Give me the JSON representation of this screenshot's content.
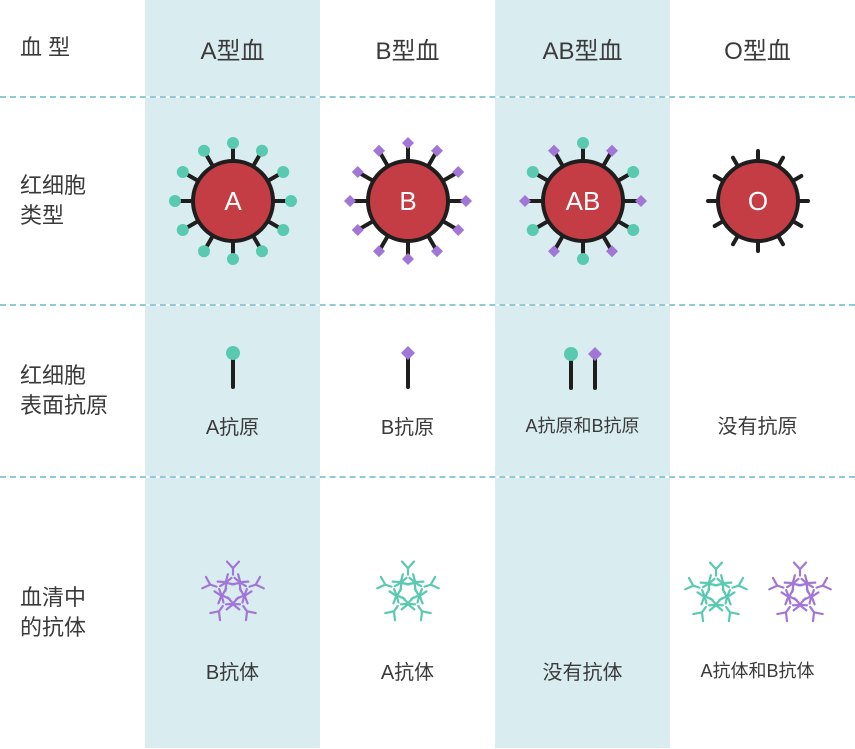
{
  "colors": {
    "highlight_bg": "#d9edf1",
    "divider": "#8fcad6",
    "text": "#3a3a3a",
    "cell_fill": "#c43d45",
    "cell_stroke": "#1e1e1e",
    "antigen_a": "#59c9b0",
    "antigen_b": "#a276d6",
    "cell_label": "#ffffff"
  },
  "header": {
    "row_label": "血 型",
    "cols": [
      "A型血",
      "B型血",
      "AB型血",
      "O型血"
    ],
    "highlighted_cols": [
      0,
      2
    ]
  },
  "rbc": {
    "row_label": "红细胞\n类型",
    "cells": [
      {
        "label": "A",
        "antigens": "A"
      },
      {
        "label": "B",
        "antigens": "B"
      },
      {
        "label": "AB",
        "antigens": "AB"
      },
      {
        "label": "O",
        "antigens": "none"
      }
    ],
    "style": {
      "radius": 40,
      "stroke_width": 4,
      "spike_len": 18,
      "marker_r_a": 6,
      "marker_half_b": 6,
      "spike_count": 12,
      "none_spike_len": 10,
      "label_fontsize": 26
    }
  },
  "antigen": {
    "row_label": "红细胞\n表面抗原",
    "items": [
      {
        "markers": [
          "A"
        ],
        "caption": "A抗原"
      },
      {
        "markers": [
          "B"
        ],
        "caption": "B抗原"
      },
      {
        "markers": [
          "A",
          "B"
        ],
        "caption": "A抗原和B抗原"
      },
      {
        "markers": [],
        "caption": "没有抗原"
      }
    ],
    "style": {
      "stick_len": 34,
      "stroke_width": 4,
      "marker_r_a": 7,
      "marker_half_b": 7
    }
  },
  "antibody": {
    "row_label": "血清中\n的抗体",
    "items": [
      {
        "groups": [
          "B"
        ],
        "caption": "B抗体"
      },
      {
        "groups": [
          "A"
        ],
        "caption": "A抗体"
      },
      {
        "groups": [],
        "caption": "没有抗体"
      },
      {
        "groups": [
          "A",
          "B"
        ],
        "caption": "A抗体和B抗体"
      }
    ],
    "style": {
      "stroke_width": 2.2,
      "cluster_radius": 28,
      "arm_len": 15,
      "tip_spread": 6
    }
  }
}
